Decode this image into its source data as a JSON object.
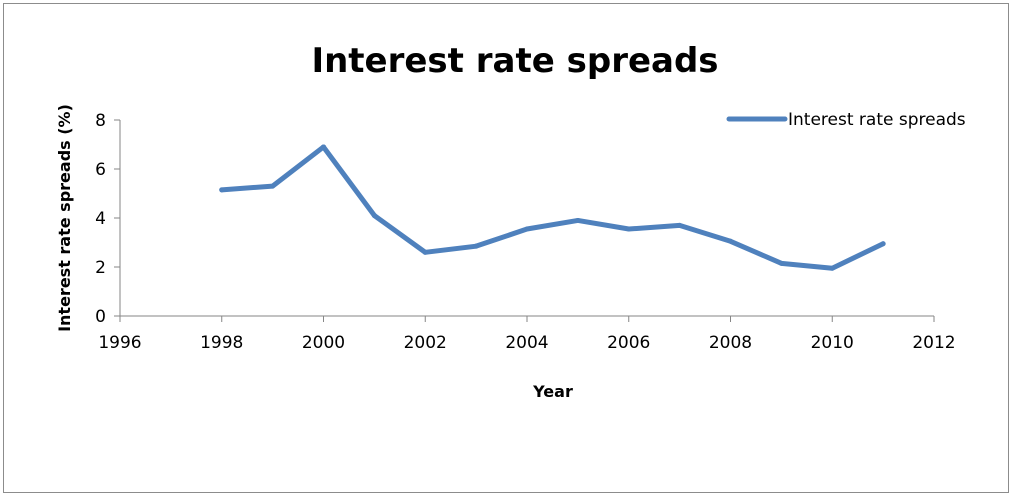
{
  "chart_data": {
    "type": "line",
    "title": "Interest rate spreads",
    "xlabel": "Year",
    "ylabel": "Interest rate spreads (%)",
    "xlim": [
      1996,
      2012
    ],
    "ylim": [
      0,
      8
    ],
    "xticks": [
      1996,
      1998,
      2000,
      2002,
      2004,
      2006,
      2008,
      2010,
      2012
    ],
    "yticks": [
      0,
      2,
      4,
      6,
      8
    ],
    "grid": false,
    "legend_position": "top-right",
    "series": [
      {
        "name": "Interest rate spreads",
        "color": "#4f81bd",
        "x": [
          1998,
          1999,
          2000,
          2001,
          2002,
          2003,
          2004,
          2005,
          2006,
          2007,
          2008,
          2009,
          2010,
          2011
        ],
        "y": [
          5.15,
          5.3,
          6.9,
          4.1,
          2.6,
          2.85,
          3.55,
          3.9,
          3.55,
          3.7,
          3.05,
          2.15,
          1.95,
          2.95
        ]
      }
    ]
  }
}
